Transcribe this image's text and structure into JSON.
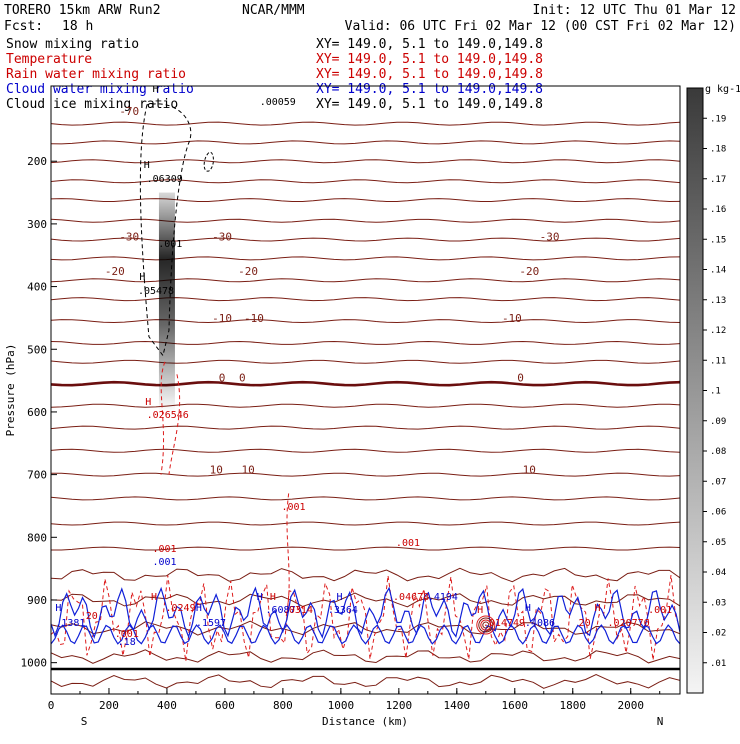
{
  "header": {
    "model": "TORERO  15km ARW   Run2",
    "org": "NCAR/MMM",
    "init": "Init: 12 UTC Thu 01 Mar 12",
    "fcst_label": "Fcst:",
    "fcst_value": "18 h",
    "valid": "Valid: 06 UTC Fri 02 Mar 12 (00 CST Fri 02 Mar 12)"
  },
  "legend": [
    {
      "name": "Snow mixing ratio",
      "xy": "XY= 149.0,  5.1 to 149.0,149.8",
      "color": "#000000"
    },
    {
      "name": "Temperature",
      "xy": "XY= 149.0,  5.1 to 149.0,149.8",
      "color": "#cc0000"
    },
    {
      "name": "Rain water mixing ratio",
      "xy": "XY= 149.0,  5.1 to 149.0,149.8",
      "color": "#cc0000"
    },
    {
      "name": "Cloud water mixing ratio",
      "xy": "XY= 149.0,  5.1 to 149.0,149.8",
      "color": "#0000cc"
    },
    {
      "name": "Cloud ice mixing ratio",
      "xy": "XY= 149.0,  5.1 to 149.0,149.8",
      "color": "#000000"
    }
  ],
  "chart_data": {
    "type": "heatmap",
    "xlabel": "Distance (km)",
    "ylabel": "Pressure (hPa)",
    "xlim": [
      0,
      2170
    ],
    "ylim": [
      1050,
      80
    ],
    "x_ticks": [
      0,
      200,
      400,
      600,
      800,
      1000,
      1200,
      1400,
      1600,
      1800,
      2000
    ],
    "y_ticks": [
      200,
      300,
      400,
      500,
      600,
      700,
      800,
      900,
      1000
    ],
    "x_end_labels": {
      "left": "S",
      "right": "N"
    },
    "colorbar": {
      "unit": "g kg-1",
      "ticks": [
        ".01",
        ".02",
        ".03",
        ".04",
        ".05",
        ".06",
        ".07",
        ".08",
        ".09",
        ".1",
        ".11",
        ".12",
        ".13",
        ".14",
        ".15",
        ".16",
        ".17",
        ".18",
        ".19"
      ]
    },
    "snow_column": {
      "x": 400,
      "p_top": 250,
      "p_bottom": 600,
      "max_value": 0.19
    },
    "isentrope_levels": [
      140,
      170,
      200,
      232,
      262,
      295,
      325,
      355,
      390,
      420,
      455,
      490,
      520,
      555,
      590,
      625,
      662,
      700,
      738,
      778,
      818,
      860,
      900,
      945,
      990,
      1030
    ],
    "isotherms": [
      {
        "label": "-70",
        "p": 120,
        "positions": [
          270
        ]
      },
      {
        "label": "-30",
        "p": 320,
        "positions": [
          270,
          590,
          1720
        ]
      },
      {
        "label": "-20",
        "p": 375,
        "positions": [
          220,
          680,
          1650
        ]
      },
      {
        "label": "-10",
        "p": 450,
        "positions": [
          590,
          700,
          1590
        ]
      },
      {
        "label": "0",
        "p": 545,
        "positions": [
          590,
          660,
          1620
        ]
      },
      {
        "label": "10",
        "p": 692,
        "positions": [
          570,
          680,
          1650
        ]
      }
    ],
    "annotations": [
      {
        "text": "H",
        "x": 350,
        "y": 92,
        "color": "#000000"
      },
      {
        "text": ".00059",
        "x": 720,
        "y": 105,
        "color": "#000000"
      },
      {
        "text": "H",
        "x": 320,
        "y": 168,
        "color": "#000000"
      },
      {
        "text": ".06309",
        "x": 330,
        "y": 182,
        "color": "#000000"
      },
      {
        "text": ".001",
        "x": 370,
        "y": 247,
        "color": "#000000"
      },
      {
        "text": "H",
        "x": 305,
        "y": 280,
        "color": "#000000"
      },
      {
        "text": ".05478",
        "x": 300,
        "y": 294,
        "color": "#000000"
      },
      {
        "text": "H",
        "x": 325,
        "y": 405,
        "color": "#cc0000"
      },
      {
        "text": ".026546",
        "x": 330,
        "y": 418,
        "color": "#cc0000"
      },
      {
        "text": ".001",
        "x": 795,
        "y": 510,
        "color": "#cc0000"
      },
      {
        "text": ".001",
        "x": 1190,
        "y": 546,
        "color": "#cc0000"
      },
      {
        "text": ".001",
        "x": 350,
        "y": 552,
        "color": "#cc0000"
      },
      {
        "text": ".001",
        "x": 350,
        "y": 565,
        "color": "#0000cc"
      },
      {
        "text": "H",
        "x": 15,
        "y": 611,
        "color": "#0000cc"
      },
      {
        "text": ".1381",
        "x": 15,
        "y": 626,
        "color": "#0000cc"
      },
      {
        "text": "H",
        "x": 345,
        "y": 600,
        "color": "#cc0000"
      },
      {
        "text": ".0249",
        "x": 395,
        "y": 611,
        "color": "#cc0000"
      },
      {
        "text": "H",
        "x": 500,
        "y": 611,
        "color": "#0000cc"
      },
      {
        "text": ".1597",
        "x": 500,
        "y": 626,
        "color": "#0000cc"
      },
      {
        "text": "H",
        "x": 710,
        "y": 600,
        "color": "#0000cc"
      },
      {
        "text": "H",
        "x": 755,
        "y": 600,
        "color": "#cc0000"
      },
      {
        "text": ".6087",
        "x": 740,
        "y": 613,
        "color": "#0000cc"
      },
      {
        "text": ".0314",
        "x": 800,
        "y": 613,
        "color": "#cc0000"
      },
      {
        "text": "H",
        "x": 985,
        "y": 600,
        "color": "#0000cc"
      },
      {
        "text": ".3364",
        "x": 955,
        "y": 613,
        "color": "#0000cc"
      },
      {
        "text": ".04678",
        "x": 1180,
        "y": 600,
        "color": "#cc0000"
      },
      {
        "text": ".4194",
        "x": 1300,
        "y": 600,
        "color": "#0000cc"
      },
      {
        "text": "H",
        "x": 1470,
        "y": 613,
        "color": "#cc0000"
      },
      {
        "text": ".014749",
        "x": 1490,
        "y": 626,
        "color": "#cc0000"
      },
      {
        "text": "H",
        "x": 1635,
        "y": 611,
        "color": "#0000cc"
      },
      {
        "text": ".4086",
        "x": 1635,
        "y": 626,
        "color": "#0000cc"
      },
      {
        "text": "H",
        "x": 1875,
        "y": 611,
        "color": "#cc0000"
      },
      {
        "text": ".020776",
        "x": 1920,
        "y": 626,
        "color": "#cc0000"
      },
      {
        "text": ".001",
        "x": 2060,
        "y": 613,
        "color": "#cc0000"
      },
      {
        "text": ".001",
        "x": 220,
        "y": 637,
        "color": "#cc0000"
      },
      {
        "text": ".18",
        "x": 230,
        "y": 645,
        "color": "#0000cc"
      },
      {
        "text": "20",
        "x": 120,
        "y": 619,
        "color": "#cc0000"
      },
      {
        "text": "20",
        "x": 1820,
        "y": 626,
        "color": "#cc0000"
      }
    ]
  },
  "colors": {
    "isentrope": "#7a1e14",
    "freezing": "#6a0e0e",
    "rain": "#dd1c1c",
    "cloud_water": "#1020d8",
    "ice": "#000000"
  }
}
